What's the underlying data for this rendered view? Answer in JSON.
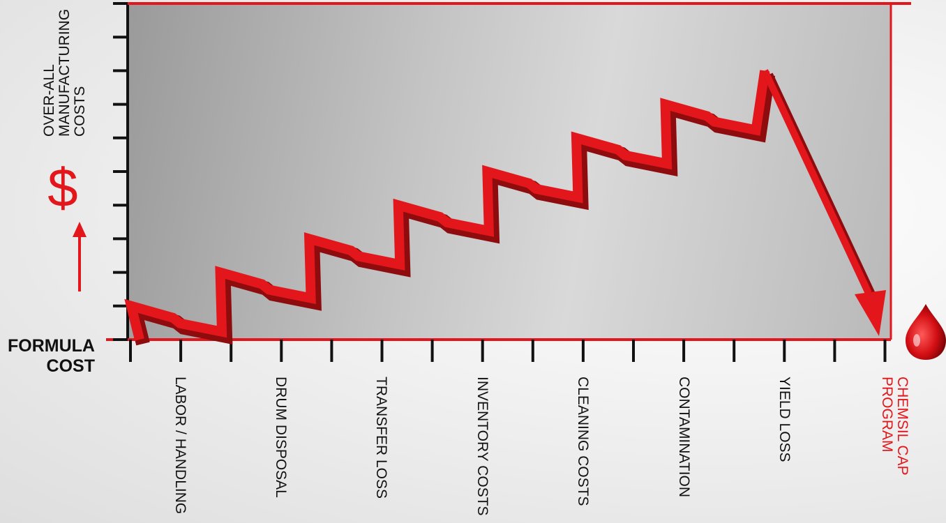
{
  "chart_data": {
    "type": "line",
    "title": "",
    "ylabel": "OVER-ALL MANUFACTURING COSTS",
    "ylabel_lines": [
      "OVER-ALL",
      "MANUFACTURING",
      "COSTS"
    ],
    "ylabel_symbol": "$",
    "baseline_label": "FORMULA COST",
    "baseline_label_lines": [
      "FORMULA",
      "COST"
    ],
    "categories": [
      "LABOR / HANDLING",
      "DRUM DISPOSAL",
      "TRANSFER LOSS",
      "INVENTORY COSTS",
      "CLEANING COSTS",
      "CONTAMINATION",
      "YIELD LOSS"
    ],
    "final_category": [
      "CHEMSIL CAP",
      "PROGRAM"
    ],
    "cost_levels": [
      1,
      2,
      3,
      4,
      5,
      6,
      7,
      8
    ],
    "final_level": 0,
    "ylim": [
      0,
      10
    ],
    "grid": false,
    "colors": {
      "line": "#e3161b",
      "line_shadow": "#8e0b0e",
      "axis": "#e3161b",
      "highlight_text": "#e3161b",
      "text": "#111111"
    },
    "icons": [
      "up-arrow-icon",
      "blood-drop-icon"
    ]
  }
}
